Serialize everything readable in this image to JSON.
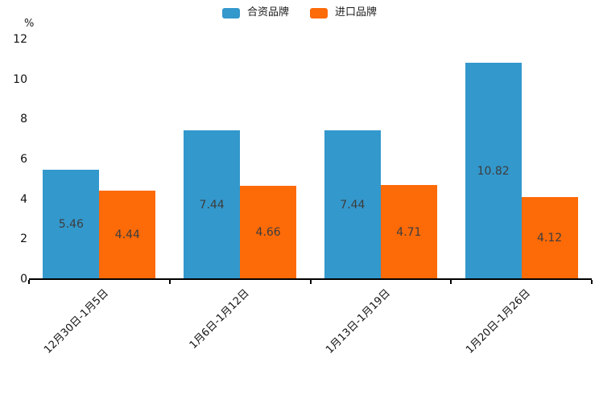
{
  "chart_data": {
    "type": "bar",
    "categories": [
      "12月30日-1月5日",
      "1月6日-1月12日",
      "1月13日-1月19日",
      "1月20日-1月26日"
    ],
    "series": [
      {
        "name": "合资品牌",
        "color": "#3398cc",
        "values": [
          5.46,
          7.44,
          7.44,
          10.82
        ]
      },
      {
        "name": "进口品牌",
        "color": "#fd6a08",
        "values": [
          4.44,
          4.66,
          4.71,
          4.12
        ]
      }
    ],
    "title": "",
    "xlabel": "",
    "ylabel": "%",
    "ylim": [
      0,
      12
    ],
    "yticks": [
      0,
      2,
      4,
      6,
      8,
      10,
      12
    ],
    "grid": false,
    "legend_position": "top-center",
    "value_labels": "inside-center",
    "value_label_texts": {
      "合资品牌": [
        "5.46",
        "7.44",
        "7.44",
        "10.82"
      ],
      "进口品牌": [
        "4.44",
        "4.66",
        "4.71",
        "4.12"
      ]
    },
    "x_label_rotation_deg": -45
  }
}
